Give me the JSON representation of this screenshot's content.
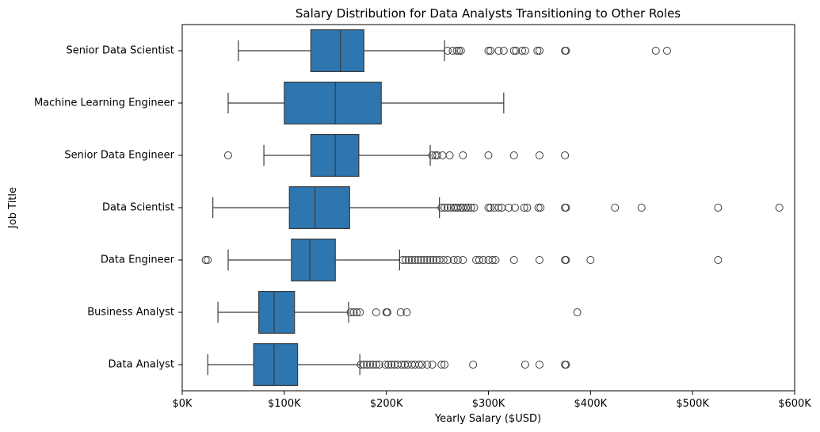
{
  "chart_data": {
    "type": "boxplot",
    "orientation": "horizontal",
    "title": "Salary Distribution for Data Analysts Transitioning to Other Roles",
    "xlabel": "Yearly Salary ($USD)",
    "ylabel": "Job Title",
    "xlim": [
      0,
      600000
    ],
    "xticks": [
      0,
      100000,
      200000,
      300000,
      400000,
      500000,
      600000
    ],
    "xtick_labels": [
      "$0K",
      "$100K",
      "$200K",
      "$300K",
      "$400K",
      "$500K",
      "$600K"
    ],
    "grid": false,
    "legend": "none",
    "box_color": "#2e76b0",
    "line_color": "#3b3b3b",
    "categories": [
      {
        "name": "Senior Data Scientist",
        "whisker_low": 55000,
        "q1": 126000,
        "median": 155000,
        "q3": 178000,
        "whisker_high": 257000,
        "outliers": [
          260000,
          265000,
          269000,
          271000,
          273000,
          300000,
          302000,
          310000,
          315000,
          325000,
          327000,
          333000,
          336000,
          348000,
          350000,
          375000,
          376000,
          464000,
          475000
        ]
      },
      {
        "name": "Machine Learning Engineer",
        "whisker_low": 45000,
        "q1": 100000,
        "median": 150000,
        "q3": 195000,
        "whisker_high": 315000,
        "outliers": []
      },
      {
        "name": "Senior Data Engineer",
        "whisker_low": 80000,
        "q1": 126000,
        "median": 150000,
        "q3": 173000,
        "whisker_high": 243000,
        "outliers": [
          45000,
          245000,
          248000,
          250000,
          255000,
          262000,
          275000,
          300000,
          325000,
          350000,
          375000
        ]
      },
      {
        "name": "Data Scientist",
        "whisker_low": 30000,
        "q1": 105000,
        "median": 130000,
        "q3": 164000,
        "whisker_high": 252000,
        "outliers": [
          254000,
          257000,
          260000,
          263000,
          266000,
          268000,
          270000,
          273000,
          275000,
          278000,
          280000,
          283000,
          286000,
          300000,
          302000,
          306000,
          310000,
          313000,
          320000,
          326000,
          335000,
          338000,
          349000,
          351000,
          375000,
          376000,
          424000,
          450000,
          525000,
          585000
        ]
      },
      {
        "name": "Data Engineer",
        "whisker_low": 45000,
        "q1": 107000,
        "median": 125000,
        "q3": 150000,
        "whisker_high": 213000,
        "outliers": [
          23000,
          25000,
          216000,
          219000,
          222000,
          225000,
          228000,
          231000,
          234000,
          237000,
          240000,
          243000,
          246000,
          249000,
          252000,
          256000,
          260000,
          266000,
          270000,
          275000,
          288000,
          291000,
          295000,
          300000,
          304000,
          307000,
          325000,
          350000,
          375000,
          376000,
          400000,
          525000
        ]
      },
      {
        "name": "Business Analyst",
        "whisker_low": 35000,
        "q1": 75000,
        "median": 90000,
        "q3": 110000,
        "whisker_high": 163000,
        "outliers": [
          165000,
          168000,
          171000,
          174000,
          190000,
          200000,
          201000,
          214000,
          220000,
          387000
        ]
      },
      {
        "name": "Data Analyst",
        "whisker_low": 25000,
        "q1": 70000,
        "median": 90000,
        "q3": 113000,
        "whisker_high": 174000,
        "outliers": [
          175000,
          178000,
          181000,
          184000,
          187000,
          190000,
          193000,
          199000,
          202000,
          205000,
          208000,
          211000,
          215000,
          218000,
          221000,
          225000,
          228000,
          232000,
          235000,
          240000,
          245000,
          254000,
          257000,
          285000,
          336000,
          350000,
          375000,
          376000
        ]
      }
    ]
  }
}
